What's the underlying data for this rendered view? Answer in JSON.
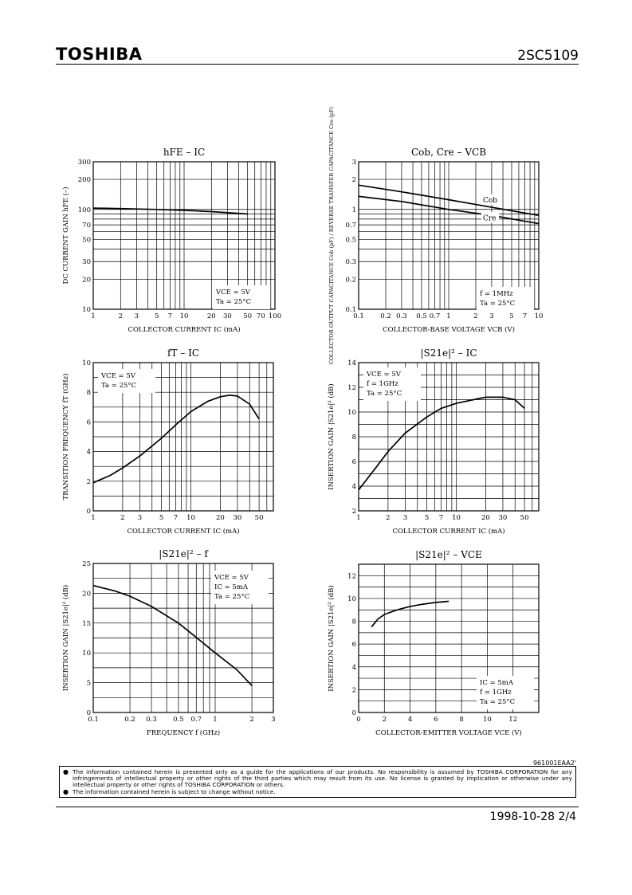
{
  "header": {
    "brand": "TOSHIBA",
    "part_number": "2SC5109"
  },
  "footer": {
    "doc_id": "961001EAA2'",
    "date_page": "1998-10-28   2/4"
  },
  "disclaimer": [
    "The information contained herein is presented only as a guide for the applications of our products. No responsibility is assumed by TOSHIBA CORPORATION for any infringements of intellectual property or other rights of the third parties which may result from its use. No license is granted by implication or otherwise under any intellectual property or other rights of TOSHIBA CORPORATION or others.",
    "The information contained herein is subject to change without notice."
  ],
  "chart_data": [
    {
      "type": "line",
      "id": "hfe_ic",
      "title": "hFE – IC",
      "xlabel": "COLLECTOR CURRENT   IC   (mA)",
      "ylabel": "DC CURRENT GAIN   hFE   (–)",
      "xscale": "log",
      "yscale": "log",
      "xlim": [
        1,
        100
      ],
      "ylim": [
        10,
        300
      ],
      "xticks": [
        1,
        2,
        3,
        5,
        7,
        10,
        20,
        30,
        50,
        70,
        100
      ],
      "yticks": [
        10,
        20,
        30,
        50,
        70,
        100,
        200,
        300
      ],
      "conditions": [
        "VCE = 5V",
        "Ta = 25°C"
      ],
      "series": [
        {
          "points": [
            [
              1,
              103
            ],
            [
              2,
              102
            ],
            [
              5,
              100
            ],
            [
              10,
              98
            ],
            [
              20,
              95
            ],
            [
              50,
              90
            ]
          ]
        }
      ]
    },
    {
      "type": "line",
      "id": "cob_cre_vcb",
      "title": "Cob, Cre – VCB",
      "xlabel": "COLLECTOR-BASE VOLTAGE   VCB   (V)",
      "ylabel": "COLLECTOR OUTPUT CAPACITANCE  Cob (pF) / REVERSE TRANSFER CAPACITANCE  Cre (pF)",
      "xscale": "log",
      "yscale": "log",
      "xlim": [
        0.1,
        10
      ],
      "ylim": [
        0.1,
        3
      ],
      "xticks": [
        0.1,
        0.2,
        0.3,
        0.5,
        0.7,
        1,
        2,
        3,
        5,
        7,
        10
      ],
      "yticks": [
        0.1,
        0.2,
        0.3,
        0.5,
        0.7,
        1,
        2,
        3
      ],
      "conditions": [
        "f = 1MHz",
        "Ta = 25°C"
      ],
      "series": [
        {
          "name": "Cob",
          "points": [
            [
              0.1,
              1.75
            ],
            [
              0.3,
              1.5
            ],
            [
              1,
              1.25
            ],
            [
              3,
              1.05
            ],
            [
              10,
              0.87
            ]
          ]
        },
        {
          "name": "Cre",
          "points": [
            [
              0.1,
              1.35
            ],
            [
              0.3,
              1.2
            ],
            [
              1,
              1.0
            ],
            [
              3,
              0.87
            ],
            [
              10,
              0.72
            ]
          ]
        }
      ]
    },
    {
      "type": "line",
      "id": "ft_ic",
      "title": "fT – IC",
      "xlabel": "COLLECTOR CURRENT   IC   (mA)",
      "ylabel": "TRANSITION FREQUENCY   fT   (GHz)",
      "xscale": "log",
      "yscale": "linear",
      "xlim": [
        1,
        70
      ],
      "ylim": [
        0,
        10
      ],
      "xticks": [
        1,
        2,
        3,
        5,
        7,
        10,
        20,
        30,
        50
      ],
      "yticks": [
        0,
        2,
        4,
        6,
        8,
        10
      ],
      "conditions": [
        "VCE = 5V",
        "Ta = 25°C"
      ],
      "series": [
        {
          "points": [
            [
              1,
              1.9
            ],
            [
              1.5,
              2.4
            ],
            [
              2,
              2.9
            ],
            [
              3,
              3.7
            ],
            [
              5,
              4.9
            ],
            [
              7,
              5.8
            ],
            [
              10,
              6.7
            ],
            [
              15,
              7.4
            ],
            [
              20,
              7.7
            ],
            [
              25,
              7.8
            ],
            [
              30,
              7.75
            ],
            [
              40,
              7.2
            ],
            [
              50,
              6.2
            ]
          ]
        }
      ]
    },
    {
      "type": "line",
      "id": "s21_ic",
      "title": "|S21e|² – IC",
      "xlabel": "COLLECTOR CURRENT   IC   (mA)",
      "ylabel": "INSERTION GAIN   |S21e|²   (dB)",
      "xscale": "log",
      "yscale": "linear",
      "xlim": [
        1,
        70
      ],
      "ylim": [
        2,
        14
      ],
      "xticks": [
        1,
        2,
        3,
        5,
        7,
        10,
        20,
        30,
        50
      ],
      "yticks": [
        2,
        4,
        6,
        8,
        10,
        12,
        14
      ],
      "conditions": [
        "VCE = 5V",
        "f = 1GHz",
        "Ta = 25°C"
      ],
      "series": [
        {
          "points": [
            [
              1,
              3.7
            ],
            [
              1.5,
              5.5
            ],
            [
              2,
              6.8
            ],
            [
              3,
              8.3
            ],
            [
              5,
              9.6
            ],
            [
              7,
              10.3
            ],
            [
              10,
              10.7
            ],
            [
              15,
              11.0
            ],
            [
              20,
              11.2
            ],
            [
              30,
              11.2
            ],
            [
              40,
              11.0
            ],
            [
              50,
              10.3
            ]
          ]
        }
      ]
    },
    {
      "type": "line",
      "id": "s21_f",
      "title": "|S21e|² – f",
      "xlabel": "FREQUENCY   f   (GHz)",
      "ylabel": "INSERTION GAIN   |S21e|²   (dB)",
      "xscale": "log",
      "yscale": "linear",
      "xlim": [
        0.1,
        3
      ],
      "ylim": [
        0,
        25
      ],
      "xticks": [
        0.1,
        0.2,
        0.3,
        0.5,
        0.7,
        1,
        2,
        3
      ],
      "yticks": [
        0,
        5,
        10,
        15,
        20,
        25
      ],
      "conditions": [
        "VCE = 5V",
        "IC = 5mA",
        "Ta = 25°C"
      ],
      "series": [
        {
          "points": [
            [
              0.1,
              21.3
            ],
            [
              0.15,
              20.4
            ],
            [
              0.2,
              19.5
            ],
            [
              0.3,
              17.8
            ],
            [
              0.5,
              15.0
            ],
            [
              0.7,
              12.6
            ],
            [
              1,
              10.0
            ],
            [
              1.5,
              7.2
            ],
            [
              2,
              4.5
            ]
          ]
        }
      ]
    },
    {
      "type": "line",
      "id": "s21_vce",
      "title": "|S21e|² – VCE",
      "xlabel": "COLLECTOR-EMITTER VOLTAGE   VCE   (V)",
      "ylabel": "INSERTION GAIN   |S21e|²   (dB)",
      "xscale": "linear",
      "yscale": "linear",
      "xlim": [
        0,
        14
      ],
      "ylim": [
        0,
        13
      ],
      "xticks": [
        0,
        2,
        4,
        6,
        8,
        10,
        12
      ],
      "yticks": [
        0,
        2,
        4,
        6,
        8,
        10,
        12
      ],
      "conditions": [
        "IC = 5mA",
        "f = 1GHz",
        "Ta = 25°C"
      ],
      "series": [
        {
          "points": [
            [
              1,
              7.5
            ],
            [
              1.5,
              8.2
            ],
            [
              2,
              8.6
            ],
            [
              3,
              9.0
            ],
            [
              4,
              9.3
            ],
            [
              5,
              9.5
            ],
            [
              6,
              9.65
            ],
            [
              7,
              9.75
            ]
          ]
        }
      ]
    }
  ]
}
